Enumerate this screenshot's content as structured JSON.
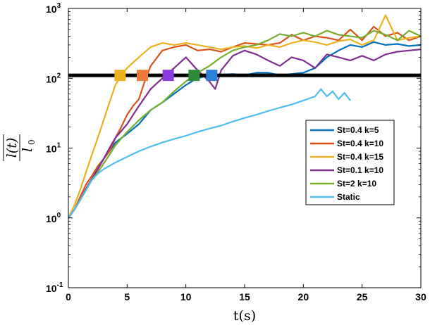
{
  "chart_data": {
    "type": "line",
    "title": "",
    "xlabel": "t(s)",
    "ylabel_num": "l(t)",
    "ylabel_den": "l",
    "ylabel_den_sub": "0",
    "xlim": [
      0,
      30
    ],
    "ylim": [
      0.1,
      1000
    ],
    "y_scale": "log",
    "grid": false,
    "legend_position": "right-middle",
    "x_ticks": [
      "0",
      "5",
      "10",
      "15",
      "20",
      "25",
      "30"
    ],
    "y_ticks": [
      {
        "base": "10",
        "exp": "-1",
        "value": 0.1
      },
      {
        "base": "10",
        "exp": "0",
        "value": 1
      },
      {
        "base": "10",
        "exp": "1",
        "value": 10
      },
      {
        "base": "10",
        "exp": "2",
        "value": 100
      },
      {
        "base": "10",
        "exp": "3",
        "value": 1000
      }
    ],
    "threshold": 110,
    "series": [
      {
        "name": "St=0.4 k=5",
        "color": "#0072BD",
        "x": [
          0,
          0.5,
          1,
          1.5,
          2,
          2.5,
          3,
          3.5,
          4,
          5,
          6,
          7,
          8,
          9,
          10,
          10.5,
          11,
          12,
          13,
          14,
          15,
          16,
          17,
          18,
          19,
          20,
          21,
          22,
          23,
          24,
          25,
          26,
          27,
          28,
          29,
          30
        ],
        "y": [
          1,
          1.3,
          1.8,
          2.6,
          3.6,
          5,
          7,
          9,
          12,
          16,
          22,
          35,
          45,
          60,
          80,
          90,
          100,
          110,
          112,
          115,
          110,
          120,
          120,
          110,
          115,
          120,
          140,
          200,
          250,
          300,
          280,
          330,
          300,
          310,
          290,
          300
        ]
      },
      {
        "name": "St=0.4 k=10",
        "color": "#D95319",
        "x": [
          0,
          0.5,
          1,
          1.5,
          2,
          2.5,
          3,
          3.5,
          4,
          4.5,
          5,
          5.5,
          6,
          6.5,
          7,
          8,
          9,
          10,
          11,
          12,
          13,
          14,
          15,
          16,
          17,
          18,
          19,
          20,
          21,
          22,
          23,
          24,
          25,
          26,
          27,
          28,
          29,
          30
        ],
        "y": [
          1,
          1.3,
          2,
          3,
          4,
          5.5,
          7,
          9,
          14,
          20,
          30,
          40,
          50,
          90,
          150,
          250,
          280,
          300,
          250,
          260,
          240,
          280,
          320,
          310,
          300,
          320,
          420,
          350,
          400,
          380,
          350,
          500,
          350,
          550,
          400,
          450,
          350,
          400
        ]
      },
      {
        "name": "St=0.4 k=15",
        "color": "#EDB120",
        "x": [
          0,
          0.5,
          1,
          1.5,
          2,
          2.5,
          3,
          3.5,
          4,
          4.5,
          5,
          6,
          7,
          8,
          9,
          10,
          11,
          12,
          13,
          14,
          15,
          16,
          17,
          18,
          19,
          20,
          21,
          22,
          23,
          24,
          25,
          26,
          27,
          28,
          29,
          30
        ],
        "y": [
          1,
          1.5,
          2.5,
          4.5,
          8,
          14,
          25,
          45,
          80,
          110,
          140,
          200,
          280,
          320,
          300,
          320,
          300,
          280,
          260,
          280,
          290,
          270,
          300,
          280,
          320,
          350,
          330,
          300,
          340,
          360,
          300,
          350,
          800,
          350,
          380,
          400
        ]
      },
      {
        "name": "St=0.1 k=10",
        "color": "#7E2F8E",
        "x": [
          0,
          0.5,
          1,
          1.5,
          2,
          2.5,
          3,
          3.5,
          4,
          5,
          6,
          7,
          8,
          9,
          10,
          11,
          12,
          12.5,
          13,
          14,
          15,
          16,
          17,
          18,
          19,
          20,
          21,
          22,
          23,
          24,
          25,
          26,
          27,
          28,
          29,
          30
        ],
        "y": [
          1,
          1.3,
          1.8,
          2.6,
          3.6,
          5,
          7,
          10,
          14,
          22,
          40,
          70,
          100,
          140,
          200,
          130,
          90,
          70,
          130,
          210,
          250,
          220,
          180,
          150,
          200,
          180,
          140,
          220,
          200,
          180,
          210,
          180,
          220,
          240,
          250,
          260
        ]
      },
      {
        "name": "St=2 k=10",
        "color": "#77AC30",
        "x": [
          0,
          0.5,
          1,
          1.5,
          2,
          2.5,
          3,
          3.5,
          4,
          5,
          6,
          7,
          8,
          9,
          10,
          11,
          12,
          13,
          14,
          15,
          16,
          17,
          18,
          19,
          20,
          21,
          22,
          23,
          24,
          25,
          26,
          27,
          28,
          29,
          30
        ],
        "y": [
          1,
          1.3,
          1.8,
          2.5,
          3.5,
          4.5,
          6,
          8,
          11,
          17,
          25,
          35,
          45,
          65,
          90,
          120,
          150,
          200,
          250,
          280,
          300,
          350,
          430,
          400,
          450,
          400,
          480,
          420,
          400,
          380,
          480,
          420,
          350,
          480,
          400
        ]
      },
      {
        "name": "Static",
        "color": "#4DBEEE",
        "x": [
          0,
          0.5,
          1,
          1.5,
          2,
          2.5,
          3,
          4,
          5,
          6,
          7,
          8,
          9,
          10,
          11,
          12,
          13,
          14,
          15,
          16,
          17,
          18,
          19,
          20,
          21,
          21.5,
          22,
          22.5,
          23,
          23.5,
          24
        ],
        "y": [
          1,
          1.3,
          1.8,
          2.5,
          3.5,
          4.3,
          5,
          6.2,
          7.5,
          9,
          10.5,
          12,
          13.5,
          15,
          17,
          19,
          21,
          24,
          27,
          30,
          34,
          38,
          42,
          48,
          55,
          70,
          55,
          65,
          50,
          62,
          48
        ]
      }
    ],
    "markers": [
      {
        "x": 4.4,
        "y": 110,
        "color": "#EDB120"
      },
      {
        "x": 6.3,
        "y": 110,
        "color": "#EE7A3A"
      },
      {
        "x": 8.5,
        "y": 110,
        "color": "#8C3BE0"
      },
      {
        "x": 10.7,
        "y": 110,
        "color": "#2E8B3A"
      },
      {
        "x": 12.2,
        "y": 110,
        "color": "#2E7FD6"
      }
    ]
  }
}
